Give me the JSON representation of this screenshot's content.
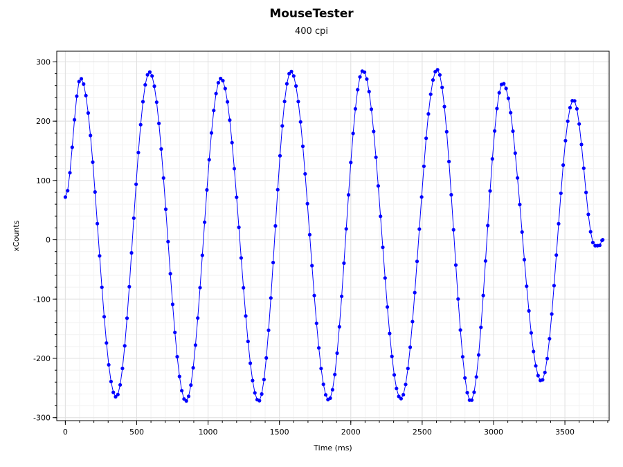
{
  "chart_data": {
    "type": "line",
    "title": "MouseTester",
    "subtitle": "400 cpi",
    "xlabel": "Time (ms)",
    "ylabel": "xCounts",
    "xlim": [
      -60,
      3810
    ],
    "ylim": [
      -305,
      318
    ],
    "x_ticks": [
      0,
      500,
      1000,
      1500,
      2000,
      2500,
      3000,
      3500
    ],
    "y_ticks": [
      -300,
      -200,
      -100,
      0,
      100,
      200,
      300
    ],
    "x_minor_step": 100,
    "y_minor_step": 20,
    "grid": true,
    "legend": "none",
    "series": [
      {
        "color": "#0000ff",
        "marker": "circle",
        "sample_step_ms": 16,
        "anchors": [
          [
            0,
            72
          ],
          [
            107,
            272
          ],
          [
            355,
            -265
          ],
          [
            590,
            283
          ],
          [
            845,
            -272
          ],
          [
            1090,
            272
          ],
          [
            1355,
            -272
          ],
          [
            1580,
            284
          ],
          [
            1845,
            -270
          ],
          [
            2085,
            285
          ],
          [
            2350,
            -268
          ],
          [
            2605,
            287
          ],
          [
            2840,
            -272
          ],
          [
            3065,
            264
          ],
          [
            3335,
            -238
          ],
          [
            3560,
            236
          ],
          [
            3710,
            -10
          ],
          [
            3740,
            -10
          ],
          [
            3765,
            0
          ]
        ]
      }
    ]
  }
}
